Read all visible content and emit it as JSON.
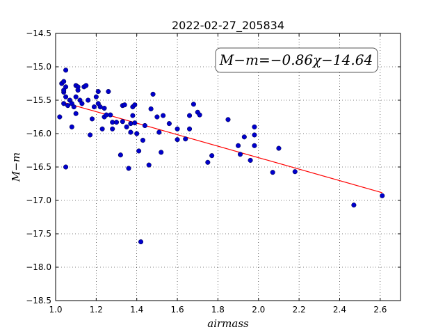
{
  "chart_data": {
    "type": "scatter",
    "title": "2022-02-27_205834",
    "xlabel": "airmass",
    "ylabel": "M−m",
    "xlim": [
      1.0,
      2.7
    ],
    "ylim": [
      -18.5,
      -14.5
    ],
    "xticks": [
      "1.0",
      "1.2",
      "1.4",
      "1.6",
      "1.8",
      "2.0",
      "2.2",
      "2.4",
      "2.6"
    ],
    "yticks": [
      "−14.5",
      "−15.0",
      "−15.5",
      "−16.0",
      "−16.5",
      "−17.0",
      "−17.5",
      "−18.0",
      "−18.5"
    ],
    "grid": true,
    "annotation": "M−m=−0.86χ−14.64",
    "fit": {
      "slope": -0.86,
      "intercept": -14.64,
      "x_range": [
        1.03,
        2.61
      ],
      "color": "#ff0000"
    },
    "marker_color": "#0000cc",
    "points": [
      [
        1.02,
        -15.75
      ],
      [
        1.03,
        -15.25
      ],
      [
        1.04,
        -15.22
      ],
      [
        1.04,
        -15.38
      ],
      [
        1.04,
        -15.35
      ],
      [
        1.05,
        -15.05
      ],
      [
        1.04,
        -15.55
      ],
      [
        1.05,
        -15.3
      ],
      [
        1.05,
        -15.45
      ],
      [
        1.06,
        -15.58
      ],
      [
        1.05,
        -16.5
      ],
      [
        1.07,
        -15.5
      ],
      [
        1.08,
        -15.55
      ],
      [
        1.08,
        -15.9
      ],
      [
        1.09,
        -15.6
      ],
      [
        1.1,
        -15.28
      ],
      [
        1.1,
        -15.45
      ],
      [
        1.1,
        -15.7
      ],
      [
        1.11,
        -15.3
      ],
      [
        1.11,
        -15.35
      ],
      [
        1.12,
        -15.5
      ],
      [
        1.13,
        -15.55
      ],
      [
        1.14,
        -15.3
      ],
      [
        1.15,
        -15.28
      ],
      [
        1.16,
        -15.5
      ],
      [
        1.17,
        -16.02
      ],
      [
        1.18,
        -15.78
      ],
      [
        1.19,
        -15.6
      ],
      [
        1.2,
        -15.45
      ],
      [
        1.21,
        -15.37
      ],
      [
        1.21,
        -15.55
      ],
      [
        1.22,
        -15.6
      ],
      [
        1.23,
        -15.93
      ],
      [
        1.24,
        -15.75
      ],
      [
        1.24,
        -15.62
      ],
      [
        1.25,
        -15.72
      ],
      [
        1.26,
        -15.37
      ],
      [
        1.27,
        -15.72
      ],
      [
        1.28,
        -15.83
      ],
      [
        1.28,
        -15.93
      ],
      [
        1.3,
        -15.83
      ],
      [
        1.32,
        -16.32
      ],
      [
        1.33,
        -15.58
      ],
      [
        1.33,
        -15.82
      ],
      [
        1.34,
        -15.57
      ],
      [
        1.35,
        -15.9
      ],
      [
        1.36,
        -16.52
      ],
      [
        1.37,
        -15.98
      ],
      [
        1.37,
        -15.85
      ],
      [
        1.38,
        -15.73
      ],
      [
        1.38,
        -15.6
      ],
      [
        1.39,
        -15.57
      ],
      [
        1.39,
        -15.84
      ],
      [
        1.4,
        -16.0
      ],
      [
        1.41,
        -16.26
      ],
      [
        1.42,
        -17.62
      ],
      [
        1.43,
        -16.1
      ],
      [
        1.44,
        -15.88
      ],
      [
        1.46,
        -16.47
      ],
      [
        1.47,
        -15.63
      ],
      [
        1.48,
        -15.41
      ],
      [
        1.5,
        -15.75
      ],
      [
        1.51,
        -15.98
      ],
      [
        1.52,
        -16.28
      ],
      [
        1.53,
        -15.73
      ],
      [
        1.56,
        -15.85
      ],
      [
        1.6,
        -15.93
      ],
      [
        1.6,
        -16.09
      ],
      [
        1.64,
        -16.08
      ],
      [
        1.66,
        -15.93
      ],
      [
        1.66,
        -15.73
      ],
      [
        1.68,
        -15.56
      ],
      [
        1.7,
        -15.68
      ],
      [
        1.71,
        -15.72
      ],
      [
        1.75,
        -16.43
      ],
      [
        1.77,
        -16.33
      ],
      [
        1.85,
        -15.79
      ],
      [
        1.9,
        -16.18
      ],
      [
        1.91,
        -16.31
      ],
      [
        1.93,
        -16.05
      ],
      [
        1.96,
        -16.4
      ],
      [
        1.98,
        -15.9
      ],
      [
        1.98,
        -16.02
      ],
      [
        1.98,
        -16.18
      ],
      [
        2.07,
        -16.58
      ],
      [
        2.1,
        -16.22
      ],
      [
        2.18,
        -16.57
      ],
      [
        2.47,
        -17.07
      ],
      [
        2.61,
        -16.93
      ]
    ]
  }
}
